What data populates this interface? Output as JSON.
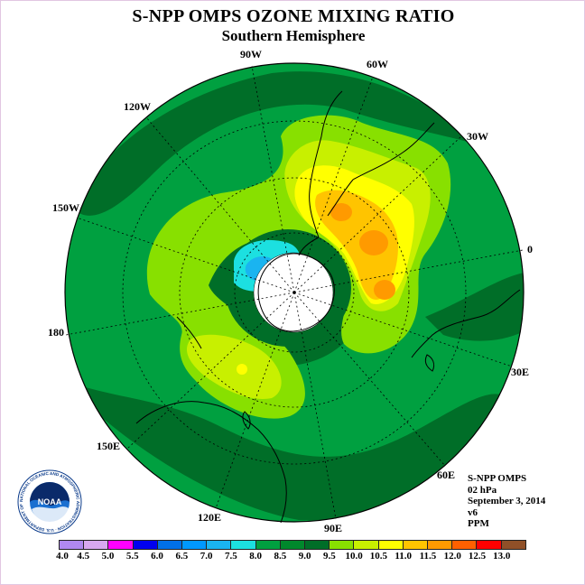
{
  "title": "S-NPP OMPS OZONE MIXING RATIO",
  "subtitle": "Southern Hemisphere",
  "longitude_labels": {
    "lon_90w": "90W",
    "lon_60w": "60W",
    "lon_30w": "30W",
    "lon_0": "0",
    "lon_30e": "30E",
    "lon_60e": "60E",
    "lon_90e": "90E",
    "lon_120e": "120E",
    "lon_150e": "150E",
    "lon_180": "180",
    "lon_150w": "150W",
    "lon_120w": "120W"
  },
  "info": {
    "instrument": "S-NPP OMPS",
    "pressure_level": "02 hPa",
    "date": "September 3, 2014",
    "version": "v6",
    "units": "PPM"
  },
  "logo": {
    "text": "NOAA",
    "ring_text": "NATIONAL OCEANIC AND ATMOSPHERIC ADMINISTRATION · U.S. DEPARTMENT OF COMMERCE"
  },
  "colorbar": {
    "colors": [
      "#b088f0",
      "#d8a8f0",
      "#ff00ff",
      "#0000f0",
      "#0070e8",
      "#0098ff",
      "#1ab4f0",
      "#1ce0e0",
      "#00a040",
      "#00882c",
      "#006e28",
      "#88e000",
      "#c8f000",
      "#ffff00",
      "#ffc400",
      "#ff9a00",
      "#ff6000",
      "#ff0000",
      "#905028"
    ],
    "tick_labels": [
      "4.0",
      "4.5",
      "5.0",
      "5.5",
      "6.0",
      "6.5",
      "7.0",
      "7.5",
      "8.0",
      "8.5",
      "9.0",
      "9.5",
      "10.0",
      "10.5",
      "11.0",
      "11.5",
      "12.0",
      "12.5",
      "13.0"
    ]
  },
  "map_colors": {
    "bg_green": "#00a040",
    "dark_green": "#006e28",
    "green_mid": "#00882c",
    "yellow_green": "#88e000",
    "light_yellow_green": "#c8f000",
    "yellow": "#ffff00",
    "orange_light": "#ffc400",
    "orange": "#ff9a00",
    "cyan": "#1ce0e0",
    "blue": "#1ab4f0",
    "polar_night": "#ffffff"
  }
}
